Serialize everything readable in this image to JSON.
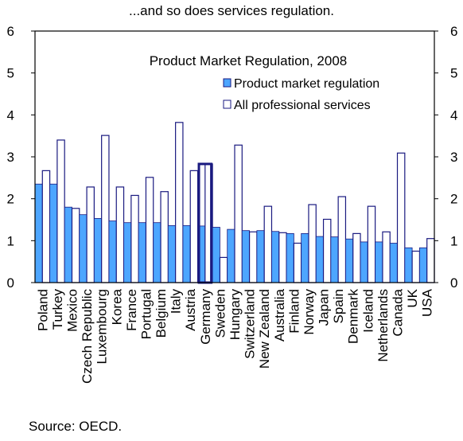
{
  "subtitle": "...and so does services regulation.",
  "source": "Source: OECD.",
  "chart_data": {
    "type": "bar",
    "title": "Product Market Regulation, 2008",
    "xlabel": "",
    "ylabel": "",
    "ylim": [
      0,
      6
    ],
    "yticks": [
      0,
      1,
      2,
      3,
      4,
      5,
      6
    ],
    "secondary_y_axis": true,
    "legend_position": "top-right (inside plot)",
    "highlighted_category": "Germany",
    "categories": [
      "Poland",
      "Turkey",
      "Mexico",
      "Czech Republic",
      "Luxembourg",
      "Korea",
      "France",
      "Portugal",
      "Belgium",
      "Italy",
      "Austria",
      "Germany",
      "Sweden",
      "Hungary",
      "Switzerland",
      "New Zealand",
      "Australia",
      "Finland",
      "Norway",
      "Japan",
      "Spain",
      "Denmark",
      "Iceland",
      "Netherlands",
      "Canada",
      "UK",
      "USA"
    ],
    "series": [
      {
        "name": "Product market regulation",
        "color": "#4da6ff",
        "style": "filled",
        "values": [
          2.35,
          2.35,
          1.8,
          1.62,
          1.53,
          1.47,
          1.43,
          1.43,
          1.43,
          1.36,
          1.36,
          1.35,
          1.32,
          1.27,
          1.24,
          1.24,
          1.22,
          1.17,
          1.17,
          1.1,
          1.09,
          1.04,
          0.97,
          0.97,
          0.94,
          0.83,
          0.83
        ]
      },
      {
        "name": "All professional services",
        "color": "#1a1a80",
        "style": "outline",
        "values": [
          2.67,
          3.4,
          1.77,
          2.28,
          3.51,
          2.28,
          2.08,
          2.51,
          2.17,
          3.82,
          2.67,
          2.83,
          0.6,
          3.28,
          1.21,
          1.82,
          1.19,
          0.94,
          1.86,
          1.51,
          2.05,
          1.17,
          1.82,
          1.21,
          3.09,
          0.75,
          1.05
        ]
      }
    ]
  }
}
